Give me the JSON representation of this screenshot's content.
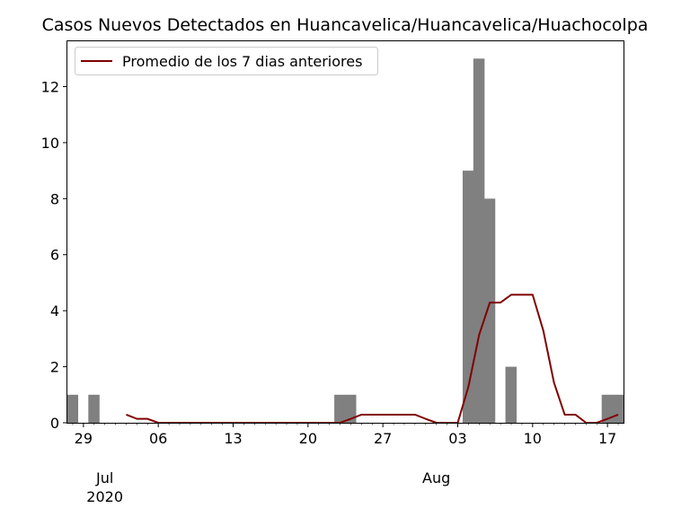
{
  "chart_data": {
    "type": "bar",
    "title": "Casos Nuevos Detectados en Huancavelica/Huancavelica/Huachocolpa",
    "xlabel": "",
    "ylabel": "",
    "x_start": "2020-06-28",
    "x_end": "2020-08-18",
    "ylim": [
      0,
      13.65
    ],
    "y_ticks": [
      0,
      2,
      4,
      6,
      8,
      10,
      12
    ],
    "x_tick_dates": [
      "2020-06-29",
      "2020-07-06",
      "2020-07-13",
      "2020-07-20",
      "2020-07-27",
      "2020-08-03",
      "2020-08-10",
      "2020-08-17"
    ],
    "x_tick_labels": [
      "29",
      "06",
      "13",
      "20",
      "27",
      "03",
      "10",
      "17"
    ],
    "month_labels": [
      {
        "date": "2020-07-01",
        "text": "Jul",
        "subtext": "2020"
      },
      {
        "date": "2020-08-01",
        "text": "Aug",
        "subtext": ""
      }
    ],
    "legend_position": "top-left",
    "grid": false,
    "colors": {
      "bars": "#808080",
      "line": "#800000"
    },
    "series": [
      {
        "type": "bar",
        "dates": [
          "2020-06-28",
          "2020-06-30",
          "2020-07-23",
          "2020-07-24",
          "2020-08-04",
          "2020-08-05",
          "2020-08-06",
          "2020-08-08",
          "2020-08-17",
          "2020-08-18"
        ],
        "values": [
          1,
          1,
          1,
          1,
          9,
          13,
          8,
          2,
          1,
          1
        ]
      },
      {
        "type": "line",
        "name": "Promedio de los 7 dias anteriores",
        "dates": [
          "2020-07-03",
          "2020-07-04",
          "2020-07-05",
          "2020-07-06",
          "2020-07-07",
          "2020-07-08",
          "2020-07-09",
          "2020-07-10",
          "2020-07-11",
          "2020-07-12",
          "2020-07-13",
          "2020-07-14",
          "2020-07-15",
          "2020-07-16",
          "2020-07-17",
          "2020-07-18",
          "2020-07-19",
          "2020-07-20",
          "2020-07-21",
          "2020-07-22",
          "2020-07-23",
          "2020-07-24",
          "2020-07-25",
          "2020-07-26",
          "2020-07-27",
          "2020-07-28",
          "2020-07-29",
          "2020-07-30",
          "2020-07-31",
          "2020-08-01",
          "2020-08-02",
          "2020-08-03",
          "2020-08-04",
          "2020-08-05",
          "2020-08-06",
          "2020-08-07",
          "2020-08-08",
          "2020-08-09",
          "2020-08-10",
          "2020-08-11",
          "2020-08-12",
          "2020-08-13",
          "2020-08-14",
          "2020-08-15",
          "2020-08-16",
          "2020-08-17",
          "2020-08-18"
        ],
        "values": [
          0.29,
          0.14,
          0.14,
          0,
          0,
          0,
          0,
          0,
          0,
          0,
          0,
          0,
          0,
          0,
          0,
          0,
          0,
          0,
          0,
          0,
          0,
          0.14,
          0.29,
          0.29,
          0.29,
          0.29,
          0.29,
          0.29,
          0.14,
          0,
          0,
          0,
          1.29,
          3.14,
          4.29,
          4.29,
          4.57,
          4.57,
          4.57,
          3.29,
          1.43,
          0.29,
          0.29,
          0,
          0,
          0.14,
          0.29
        ]
      }
    ]
  }
}
